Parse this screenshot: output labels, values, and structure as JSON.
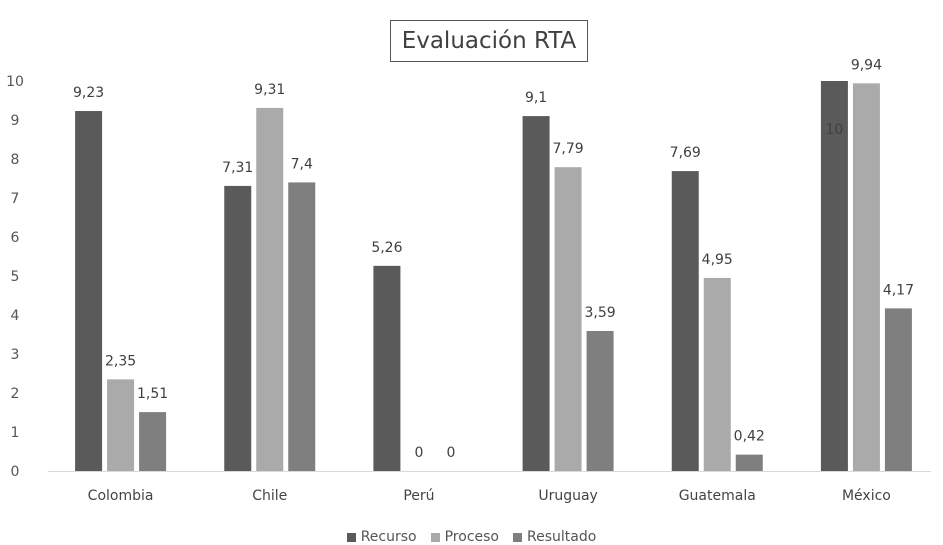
{
  "chart_data": {
    "type": "bar",
    "title": "Evaluación RTA",
    "categories": [
      "Colombia",
      "Chile",
      "Perú",
      "Uruguay",
      "Guatemala",
      "México"
    ],
    "series": [
      {
        "name": "Recurso",
        "color": "#5a5a5a",
        "values": [
          9.23,
          7.31,
          5.26,
          9.1,
          7.69,
          10
        ],
        "labels": [
          "9,23",
          "7,31",
          "5,26",
          "9,1",
          "7,69",
          "10"
        ]
      },
      {
        "name": "Proceso",
        "color": "#aaaaaa",
        "values": [
          2.35,
          9.31,
          0,
          7.79,
          4.95,
          9.94
        ],
        "labels": [
          "2,35",
          "9,31",
          "0",
          "7,79",
          "4,95",
          "9,94"
        ]
      },
      {
        "name": "Resultado",
        "color": "#7f7f7f",
        "values": [
          1.51,
          7.4,
          0,
          3.59,
          0.42,
          4.17
        ],
        "labels": [
          "1,51",
          "7,4",
          "0",
          "3,59",
          "0,42",
          "4,17"
        ]
      }
    ],
    "yticks": [
      "0",
      "1",
      "2",
      "3",
      "4",
      "5",
      "6",
      "7",
      "8",
      "9",
      "10"
    ],
    "ylim": [
      0,
      10
    ],
    "grid": false,
    "legend_position": "bottom"
  }
}
